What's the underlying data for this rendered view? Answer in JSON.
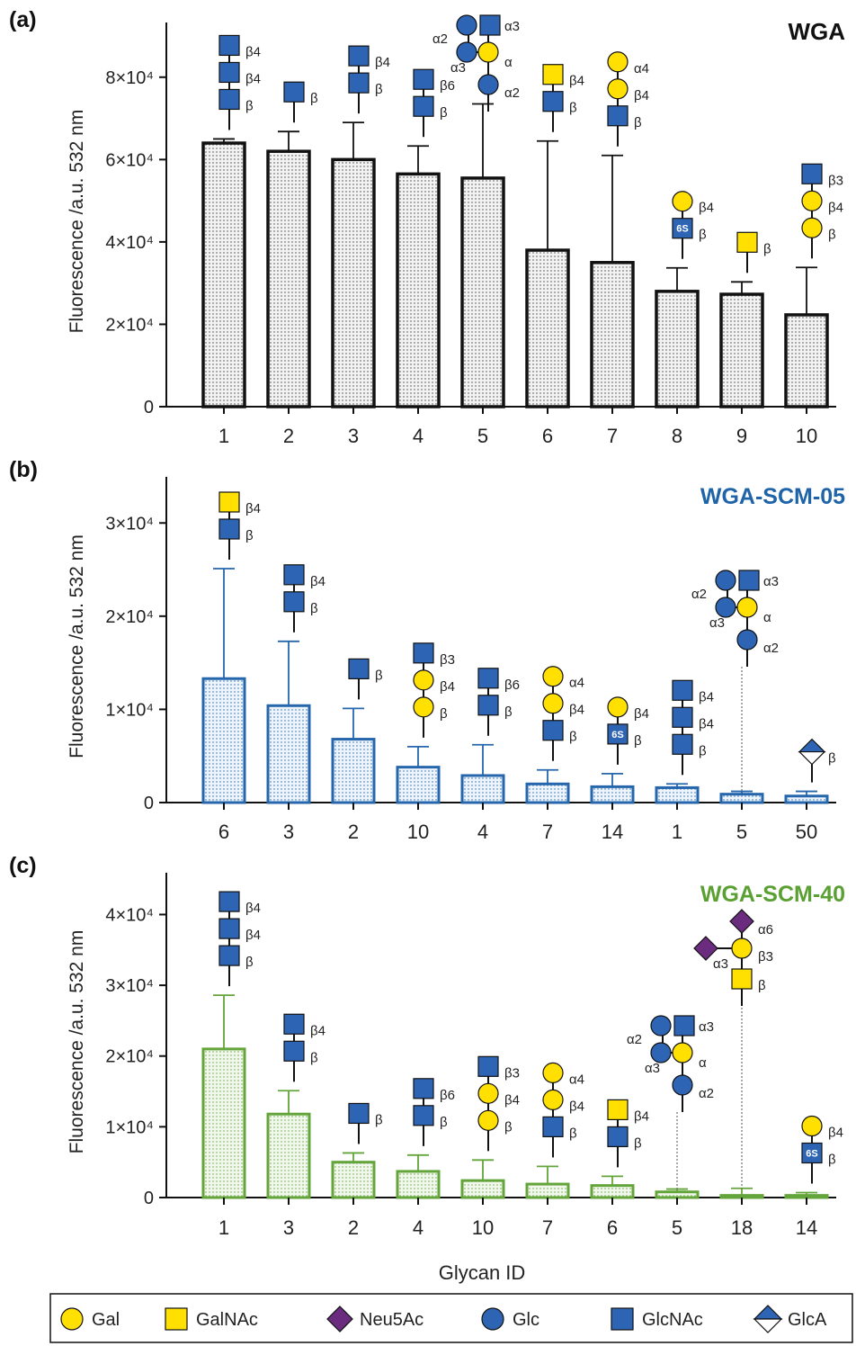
{
  "xlabel": "Glycan ID",
  "legend": [
    {
      "name": "Gal",
      "shape": "circle",
      "color": "#FFE000"
    },
    {
      "name": "GalNAc",
      "shape": "square",
      "color": "#FFE000"
    },
    {
      "name": "Neu5Ac",
      "shape": "diamond",
      "color": "#6B2C7F"
    },
    {
      "name": "Glc",
      "shape": "circle",
      "color": "#2E64B4"
    },
    {
      "name": "GlcNAc",
      "shape": "square",
      "color": "#2E64B4"
    },
    {
      "name": "GlcA",
      "shape": "diamond-half",
      "color": "#2E64B4"
    }
  ],
  "chart_data": [
    {
      "type": "bar",
      "panel": "(a)",
      "title": "WGA",
      "title_color": "#111111",
      "bar_color": "#111111",
      "ylabel": "Fluorescence /a.u.  532 nm",
      "ylim": [
        0,
        90000
      ],
      "yticks": [
        0,
        20000,
        40000,
        60000,
        80000
      ],
      "ytick_labels": [
        "0",
        "2×10⁴",
        "4×10⁴",
        "6×10⁴",
        "8×10⁴"
      ],
      "categories": [
        "1",
        "2",
        "3",
        "4",
        "5",
        "6",
        "7",
        "8",
        "9",
        "10"
      ],
      "values": [
        64000,
        62000,
        60000,
        56500,
        55500,
        38000,
        35000,
        28000,
        27300,
        22300
      ],
      "errors": [
        1000,
        4800,
        9000,
        6800,
        18000,
        26500,
        26000,
        5700,
        3000,
        11500
      ]
    },
    {
      "type": "bar",
      "panel": "(b)",
      "title": "WGA-SCM-05",
      "title_color": "#1F63A8",
      "bar_color": "#2566AC",
      "ylabel": "Fluorescence /a.u.  532 nm",
      "ylim": [
        0,
        33500
      ],
      "yticks": [
        0,
        10000,
        20000,
        30000
      ],
      "ytick_labels": [
        "0",
        "1×10⁴",
        "2×10⁴",
        "3×10⁴"
      ],
      "categories": [
        "6",
        "3",
        "2",
        "10",
        "4",
        "7",
        "14",
        "1",
        "5",
        "50"
      ],
      "values": [
        13300,
        10400,
        6800,
        3800,
        2900,
        2000,
        1700,
        1600,
        900,
        700
      ],
      "errors": [
        11800,
        6900,
        3300,
        2200,
        3300,
        1500,
        1400,
        400,
        300,
        500
      ]
    },
    {
      "type": "bar",
      "panel": "(c)",
      "title": "WGA-SCM-40",
      "title_color": "#5BA033",
      "bar_color": "#63A53A",
      "ylabel": "Fluorescence /a.u.  532 nm",
      "ylim": [
        0,
        44000
      ],
      "yticks": [
        0,
        10000,
        20000,
        30000,
        40000
      ],
      "ytick_labels": [
        "0",
        "1×10⁴",
        "2×10⁴",
        "3×10⁴",
        "4×10⁴"
      ],
      "categories": [
        "1",
        "3",
        "2",
        "4",
        "10",
        "7",
        "6",
        "5",
        "18",
        "14"
      ],
      "values": [
        21000,
        11800,
        5000,
        3700,
        2400,
        1900,
        1700,
        800,
        300,
        300
      ],
      "errors": [
        7600,
        3300,
        1300,
        2300,
        2900,
        2500,
        1300,
        400,
        1000,
        400
      ]
    }
  ]
}
